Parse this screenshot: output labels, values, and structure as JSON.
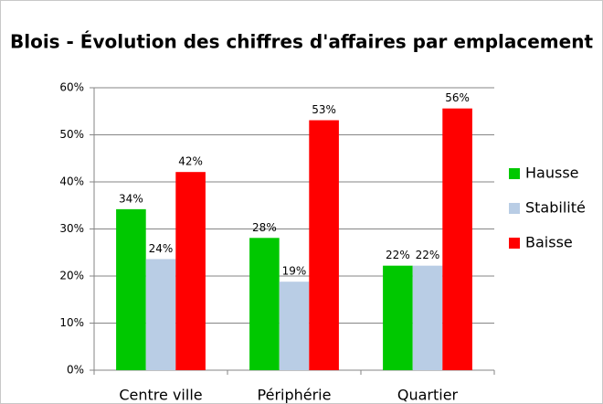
{
  "chart_data": {
    "type": "bar",
    "title": "Blois - Évolution des chiffres d'affaires par emplacement",
    "categories": [
      "Centre ville",
      "Périphérie",
      "Quartier"
    ],
    "series": [
      {
        "name": "Hausse",
        "color": "#00c800",
        "values": [
          34.2,
          28.1,
          22.2
        ],
        "value_labels": [
          "34%",
          "28%",
          "22%"
        ]
      },
      {
        "name": "Stabilité",
        "color": "#b9cde5",
        "values": [
          23.6,
          18.8,
          22.2
        ],
        "value_labels": [
          "24%",
          "19%",
          "22%"
        ]
      },
      {
        "name": "Baisse",
        "color": "#ff0000",
        "values": [
          42.1,
          53.1,
          55.6
        ],
        "value_labels": [
          "42%",
          "53%",
          "56%"
        ]
      }
    ],
    "ylim": [
      0,
      60
    ],
    "yticks": [
      {
        "value": 0,
        "label": "0%"
      },
      {
        "value": 10,
        "label": "10%"
      },
      {
        "value": 20,
        "label": "20%"
      },
      {
        "value": 30,
        "label": "30%"
      },
      {
        "value": 40,
        "label": "40%"
      },
      {
        "value": 50,
        "label": "50%"
      },
      {
        "value": 60,
        "label": "60%"
      }
    ],
    "grid": true,
    "legend": "right"
  }
}
